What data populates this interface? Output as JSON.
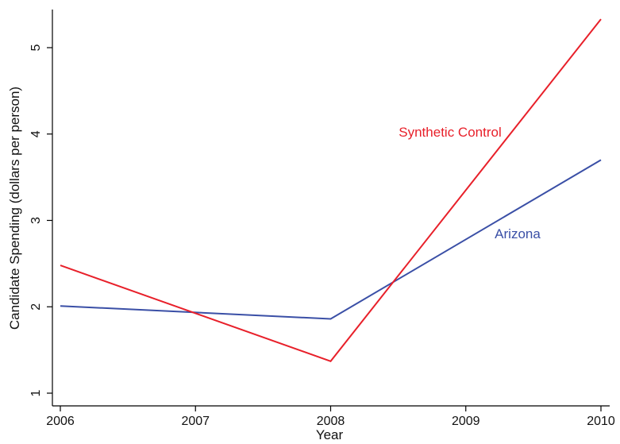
{
  "chart_data": {
    "type": "line",
    "x": [
      2006,
      2007,
      2008,
      2009,
      2010
    ],
    "xlabel": "Year",
    "ylabel": "Candidate Spending (dollars per person)",
    "xlim": [
      2006,
      2010
    ],
    "ylim": [
      0.9,
      5.4
    ],
    "x_ticks": [
      "2006",
      "2007",
      "2008",
      "2009",
      "2010"
    ],
    "y_ticks": [
      "1",
      "2",
      "3",
      "4",
      "5"
    ],
    "grid": false,
    "legend": "none (direct labels on lines)",
    "series": [
      {
        "name": "Synthetic Control",
        "color": "#e8202a",
        "points": [
          [
            2006,
            2.48
          ],
          [
            2008,
            1.37
          ],
          [
            2010,
            5.33
          ]
        ]
      },
      {
        "name": "Arizona",
        "color": "#3a4fa6",
        "points": [
          [
            2006,
            2.01
          ],
          [
            2008,
            1.86
          ],
          [
            2010,
            3.7
          ]
        ]
      }
    ]
  }
}
